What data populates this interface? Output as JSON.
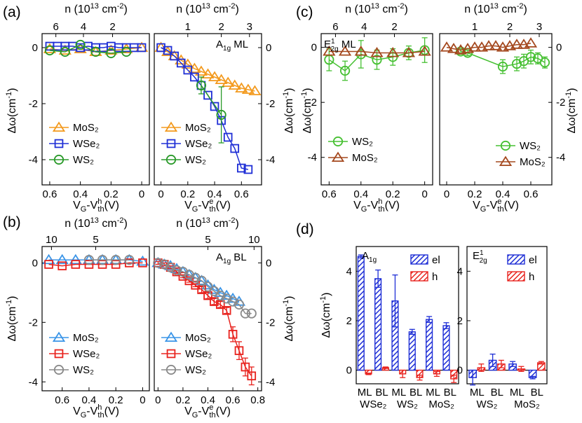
{
  "colors": {
    "MoS2": "#f39a1e",
    "WSe2": "#1f2fd6",
    "WS2": "#2a9a2a",
    "MoS2_bl": "#3a95e8",
    "WSe2_bl": "#e8231e",
    "WS2_bl": "#8a8a8a",
    "E_WS2": "#46c032",
    "E_MoS2": "#a4481e",
    "el": "#1f2fd6",
    "h": "#e8231e"
  },
  "panel_labels": {
    "a": "(a)",
    "b": "(b)",
    "c": "(c)",
    "d": "(d)"
  },
  "axis_text": {
    "n_top_a": "n (10¹³ cm⁻²)",
    "n_top_c": "n (10¹³ cm⁻²)",
    "xlabel_h": "VG-Vthh(V)",
    "xlabel_e": "VG-Vthe(V)",
    "ylabel": "Δω(cm⁻¹)"
  },
  "chart_data": [
    {
      "id": "a_left",
      "type": "scatter",
      "xlim": [
        0.65,
        -0.05
      ],
      "ylim": [
        -4.9,
        0.5
      ],
      "xticks": [
        "0.6",
        "0.4",
        "0.2",
        "0"
      ],
      "xtick_vals": [
        0.6,
        0.4,
        0.2,
        0
      ],
      "yticks": [
        "0",
        "-2",
        "-4"
      ],
      "ytick_vals": [
        0,
        -2,
        -4
      ],
      "top_ticks": [
        "6",
        "4",
        "2"
      ],
      "top_tick_vals": [
        0.56,
        0.38,
        0.19
      ],
      "legend": [
        "MoS2",
        "WSe2",
        "WS2"
      ],
      "series": [
        {
          "name": "MoS2",
          "marker": "triangle",
          "color_key": "MoS2",
          "x": [
            0.6,
            0.5,
            0.4,
            0.3,
            0.2,
            0.1,
            0
          ],
          "y": [
            -0.05,
            -0.1,
            -0.05,
            -0.15,
            -0.1,
            -0.05,
            0.0
          ]
        },
        {
          "name": "WSe2",
          "marker": "square",
          "color_key": "WSe2",
          "x": [
            0.6,
            0.55,
            0.5,
            0.45,
            0.4,
            0.35,
            0.3,
            0.25,
            0.2,
            0.15,
            0.1,
            0.05,
            0
          ],
          "y": [
            0.05,
            0.05,
            0.05,
            0.05,
            0.0,
            0.05,
            0.0,
            0.0,
            0.05,
            0.0,
            0.0,
            0.0,
            0.0
          ]
        },
        {
          "name": "WS2",
          "marker": "circle",
          "color_key": "WS2",
          "x": [
            0.6,
            0.5,
            0.4,
            0.3,
            0.2,
            0.1
          ],
          "y": [
            -0.1,
            -0.15,
            0.1,
            -0.15,
            -0.2,
            -0.15
          ]
        }
      ]
    },
    {
      "id": "a_right",
      "type": "scatter",
      "xlim": [
        -0.05,
        0.75
      ],
      "ylim": [
        -4.9,
        0.5
      ],
      "xticks": [
        "0",
        "0.2",
        "0.4",
        "0.6"
      ],
      "xtick_vals": [
        0,
        0.2,
        0.4,
        0.6
      ],
      "yticks": [
        "0",
        "-2",
        "-4"
      ],
      "ytick_vals": [
        0,
        -2,
        -4
      ],
      "top_ticks": [
        "1",
        "2",
        "3"
      ],
      "top_tick_vals": [
        0.2,
        0.45,
        0.66
      ],
      "annotation": "A1g ML",
      "legend": [
        "MoS2",
        "WSe2",
        "WS2"
      ],
      "series": [
        {
          "name": "MoS2",
          "marker": "triangle",
          "color_key": "MoS2",
          "x": [
            0,
            0.05,
            0.1,
            0.15,
            0.2,
            0.25,
            0.3,
            0.35,
            0.4,
            0.45,
            0.5,
            0.55,
            0.6,
            0.65,
            0.7
          ],
          "y": [
            0,
            -0.15,
            -0.3,
            -0.45,
            -0.6,
            -0.75,
            -0.85,
            -0.95,
            -1.05,
            -1.15,
            -1.25,
            -1.35,
            -1.45,
            -1.5,
            -1.55
          ]
        },
        {
          "name": "WSe2",
          "marker": "square",
          "color_key": "WSe2",
          "x": [
            0,
            0.05,
            0.1,
            0.15,
            0.2,
            0.25,
            0.3,
            0.35,
            0.4,
            0.45,
            0.5,
            0.55,
            0.6,
            0.65
          ],
          "y": [
            0,
            -0.1,
            -0.3,
            -0.55,
            -0.8,
            -1.05,
            -1.35,
            -1.7,
            -2.1,
            -2.6,
            -3.2,
            -3.6,
            -4.3,
            -4.35
          ]
        },
        {
          "name": "WS2",
          "marker": "circle",
          "color_key": "WS2",
          "x": [
            0.3,
            0.45
          ],
          "y": [
            -1.35,
            -2.4
          ],
          "err": [
            0.3,
            1.0
          ]
        }
      ]
    },
    {
      "id": "b_left",
      "type": "scatter",
      "xlim": [
        0.75,
        -0.05
      ],
      "ylim": [
        -4.3,
        0.55
      ],
      "xticks": [
        "0.6",
        "0.4",
        "0.2",
        "0"
      ],
      "xtick_vals": [
        0.6,
        0.4,
        0.2,
        0
      ],
      "yticks": [
        "0",
        "-2",
        "-4"
      ],
      "ytick_vals": [
        0,
        -2,
        -4
      ],
      "top_ticks": [
        "10",
        "5"
      ],
      "top_tick_vals": [
        0.68,
        0.35
      ],
      "legend": [
        "MoS2",
        "WSe2",
        "WS2"
      ],
      "series": [
        {
          "name": "MoS2",
          "marker": "triangle",
          "color_key": "MoS2_bl",
          "x": [
            0.7,
            0.6,
            0.5,
            0.4,
            0.3,
            0.2,
            0.1,
            0
          ],
          "y": [
            0.1,
            0.1,
            0.1,
            0.1,
            0.1,
            0.1,
            0.1,
            0.05
          ]
        },
        {
          "name": "WSe2",
          "marker": "square",
          "color_key": "WSe2_bl",
          "x": [
            0.7,
            0.6,
            0.5,
            0.4,
            0.3,
            0.2,
            0.1,
            0
          ],
          "y": [
            -0.05,
            -0.1,
            -0.05,
            -0.05,
            -0.05,
            -0.05,
            0.0,
            0.0
          ]
        },
        {
          "name": "WS2",
          "marker": "circle",
          "color_key": "WS2_bl",
          "x": [
            0.4,
            0.3,
            0.2,
            0.1
          ],
          "y": [
            0.1,
            0.1,
            0.1,
            0.1
          ]
        }
      ]
    },
    {
      "id": "b_right",
      "type": "scatter",
      "xlim": [
        -0.03,
        0.83
      ],
      "ylim": [
        -4.3,
        0.55
      ],
      "xticks": [
        "0",
        "0.2",
        "0.4",
        "0.6",
        "0.8"
      ],
      "xtick_vals": [
        0,
        0.2,
        0.4,
        0.6,
        0.8
      ],
      "yticks": [
        "0",
        "-2",
        "-4"
      ],
      "ytick_vals": [
        0,
        -2,
        -4
      ],
      "top_ticks": [
        "5",
        "10"
      ],
      "top_tick_vals": [
        0.4,
        0.77
      ],
      "annotation": "A1g BL",
      "legend": [
        "MoS2",
        "WSe2",
        "WS2"
      ],
      "series": [
        {
          "name": "MoS2",
          "marker": "triangle",
          "color_key": "MoS2_bl",
          "x": [
            0,
            0.05,
            0.1,
            0.15,
            0.2,
            0.25,
            0.3,
            0.35,
            0.4,
            0.45,
            0.5,
            0.55,
            0.6,
            0.65
          ],
          "y": [
            0,
            -0.05,
            -0.1,
            -0.2,
            -0.3,
            -0.4,
            -0.5,
            -0.6,
            -0.75,
            -0.9,
            -1.0,
            -1.1,
            -1.2,
            -1.3
          ]
        },
        {
          "name": "WSe2",
          "marker": "square",
          "color_key": "WSe2_bl",
          "x": [
            0,
            0.05,
            0.1,
            0.15,
            0.2,
            0.25,
            0.3,
            0.35,
            0.4,
            0.45,
            0.5,
            0.55,
            0.6,
            0.65,
            0.7,
            0.75
          ],
          "y": [
            0,
            -0.05,
            -0.15,
            -0.3,
            -0.45,
            -0.6,
            -0.75,
            -0.9,
            -1.1,
            -1.3,
            -1.4,
            -1.6,
            -2.4,
            -2.95,
            -3.5,
            -3.8
          ],
          "err": [
            0.05,
            0.05,
            0.05,
            0.05,
            0.05,
            0.05,
            0.05,
            0.1,
            0.1,
            0.1,
            0.1,
            0.1,
            0.25,
            0.3,
            0.3,
            0.3
          ]
        },
        {
          "name": "WS2",
          "marker": "circle",
          "color_key": "WS2_bl",
          "x": [
            0,
            0.05,
            0.1,
            0.15,
            0.2,
            0.25,
            0.3,
            0.35,
            0.4,
            0.45,
            0.5,
            0.55,
            0.6,
            0.65,
            0.7,
            0.75
          ],
          "y": [
            0,
            -0.05,
            -0.15,
            -0.25,
            -0.3,
            -0.4,
            -0.5,
            -0.6,
            -0.8,
            -0.95,
            -1.1,
            -1.2,
            -1.3,
            -1.4,
            -1.7,
            -1.7
          ]
        }
      ]
    },
    {
      "id": "c_left",
      "type": "scatter",
      "xlim": [
        0.65,
        -0.05
      ],
      "ylim": [
        -5.0,
        0.5
      ],
      "xticks": [
        "0.6",
        "0.4",
        "0.2",
        "0"
      ],
      "xtick_vals": [
        0.6,
        0.4,
        0.2,
        0
      ],
      "yticks": [
        "0",
        "-2",
        "-4"
      ],
      "ytick_vals": [
        0,
        -2,
        -4
      ],
      "top_ticks": [
        "6",
        "4",
        "2"
      ],
      "top_tick_vals": [
        0.56,
        0.38,
        0.19
      ],
      "annotation": "E12g ML",
      "legend": [
        "WS2",
        "MoS2"
      ],
      "series": [
        {
          "name": "WS2",
          "marker": "circle",
          "color_key": "E_WS2",
          "x": [
            0.6,
            0.5,
            0.4,
            0.3,
            0.2,
            0.1,
            0
          ],
          "y": [
            -0.45,
            -0.85,
            -0.25,
            -0.45,
            -0.35,
            -0.2,
            -0.1
          ],
          "err": [
            0.4,
            0.35,
            0.5,
            0.35,
            0.3,
            0.25,
            0.45
          ]
        },
        {
          "name": "MoS2",
          "marker": "triangle",
          "color_key": "E_MoS2",
          "x": [
            0.6,
            0.5,
            0.4,
            0.3,
            0.2,
            0.1,
            0
          ],
          "y": [
            -0.15,
            -0.15,
            -0.15,
            -0.2,
            -0.2,
            -0.2,
            -0.15
          ]
        }
      ]
    },
    {
      "id": "c_right",
      "type": "scatter",
      "xlim": [
        -0.05,
        0.75
      ],
      "ylim": [
        -5.0,
        0.5
      ],
      "xticks": [
        "0",
        "0.2",
        "0.4",
        "0.6"
      ],
      "xtick_vals": [
        0,
        0.2,
        0.4,
        0.6
      ],
      "yticks": [
        "0",
        "-2",
        "-4"
      ],
      "ytick_vals": [
        0,
        -2,
        -4
      ],
      "top_ticks": [
        "1",
        "2",
        "3"
      ],
      "top_tick_vals": [
        0.2,
        0.45,
        0.66
      ],
      "legend": [
        "WS2",
        "MoS2"
      ],
      "series": [
        {
          "name": "WS2",
          "marker": "circle",
          "color_key": "E_WS2",
          "x": [
            0.1,
            0.15,
            0.4,
            0.5,
            0.55,
            0.6,
            0.65,
            0.7
          ],
          "y": [
            -0.15,
            -0.2,
            -0.7,
            -0.6,
            -0.5,
            -0.35,
            -0.4,
            -0.55
          ],
          "err": [
            0.1,
            0.1,
            0.25,
            0.25,
            0.25,
            0.25,
            0.2,
            0.2
          ]
        },
        {
          "name": "MoS2",
          "marker": "triangle",
          "color_key": "E_MoS2",
          "x": [
            0,
            0.05,
            0.1,
            0.15,
            0.2,
            0.25,
            0.3,
            0.35,
            0.4,
            0.45,
            0.5,
            0.55,
            0.6
          ],
          "y": [
            0,
            -0.05,
            -0.1,
            -0.05,
            0.0,
            0.0,
            0.05,
            0.05,
            0.0,
            0.05,
            0.1,
            0.1,
            0.15
          ]
        }
      ]
    },
    {
      "id": "d_left",
      "type": "bar",
      "annotation": "A1g",
      "ylim": [
        -0.55,
        5.0
      ],
      "yticks": [
        "0",
        "2",
        "4"
      ],
      "ytick_vals": [
        0,
        2,
        4
      ],
      "categories": [
        "ML",
        "BL",
        "ML",
        "BL",
        "ML",
        "BL"
      ],
      "groups": [
        "WSe2",
        "WS2",
        "MoS2"
      ],
      "legend": [
        "el",
        "h"
      ],
      "series": [
        {
          "name": "el",
          "values": [
            4.6,
            3.7,
            2.8,
            1.55,
            2.05,
            1.8
          ],
          "err": [
            0.06,
            0.35,
            1.05,
            0.1,
            0.12,
            0.12
          ]
        },
        {
          "name": "h",
          "values": [
            -0.15,
            0.1,
            -0.15,
            -0.3,
            -0.15,
            -0.35
          ],
          "err": [
            0.03,
            0.03,
            0.15,
            0.1,
            0.1,
            0.15
          ]
        }
      ]
    },
    {
      "id": "d_right",
      "type": "bar",
      "annotation": "E12g",
      "ylim": [
        -0.55,
        5.0
      ],
      "yticks": [
        "0",
        "2",
        "4"
      ],
      "ytick_vals": [
        0,
        2,
        4
      ],
      "categories": [
        "ML",
        "BL",
        "ML",
        "BL"
      ],
      "groups": [
        "WS2",
        "MoS2"
      ],
      "legend": [
        "el",
        "h"
      ],
      "series": [
        {
          "name": "el",
          "values": [
            -0.3,
            0.4,
            0.25,
            -0.3
          ],
          "err": [
            0.3,
            0.25,
            0.1,
            0.05
          ]
        },
        {
          "name": "h",
          "values": [
            0.1,
            0.25,
            0.05,
            0.3
          ],
          "err": [
            0.15,
            0.15,
            0.1,
            0.05
          ]
        }
      ]
    }
  ]
}
